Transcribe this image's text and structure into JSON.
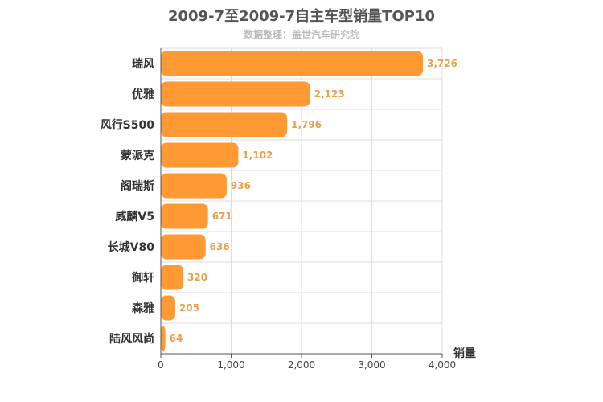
{
  "chart_data": {
    "type": "bar",
    "orientation": "horizontal",
    "title": "2009-7至2009-7自主车型销量TOP10",
    "subtitle": "数据整理：盖世汽车研究院",
    "xlabel": "销量",
    "ylabel": "",
    "categories": [
      "瑞风",
      "优雅",
      "风行S500",
      "蒙派克",
      "阁瑞斯",
      "威麟V5",
      "长城V80",
      "御轩",
      "森雅",
      "陆风风尚"
    ],
    "values": [
      3726,
      2123,
      1796,
      1102,
      936,
      671,
      636,
      320,
      205,
      64
    ],
    "value_labels": [
      "3,726",
      "2,123",
      "1,796",
      "1,102",
      "936",
      "671",
      "636",
      "320",
      "205",
      "64"
    ],
    "xlim": [
      0,
      4000
    ],
    "xticks": [
      0,
      1000,
      2000,
      3000,
      4000
    ],
    "xtick_labels": [
      "0",
      "1,000",
      "2,000",
      "3,000",
      "4,000"
    ],
    "grid": true,
    "colors": {
      "bar": "#ff9933",
      "value_label": "#e8a04a",
      "grid": "#dddddd",
      "axis": "#555555",
      "title": "#555555",
      "subtitle": "#bbbbbb"
    }
  }
}
